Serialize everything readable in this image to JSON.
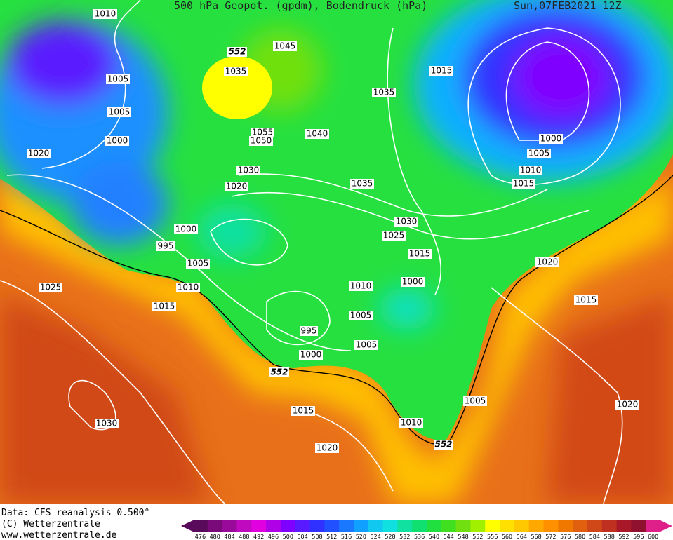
{
  "header": {
    "title": "500 hPa Geopot. (gpdm), Bodendruck (hPa)",
    "date": "Sun,07FEB2021 12Z"
  },
  "isobar_labels": [
    1010,
    1005,
    1005,
    1000,
    1020,
    1000,
    995,
    1005,
    1010,
    1025,
    1015,
    1035,
    1045,
    1055,
    1050,
    1040,
    1030,
    1020,
    1035,
    1035,
    1015,
    1000,
    1005,
    1010,
    1015,
    1030,
    1025,
    1015,
    1020,
    1010,
    1000,
    1005,
    1015,
    995,
    1005,
    1000,
    1015,
    1005,
    1010,
    1030,
    1020,
    1020
  ],
  "geopotential_labels": [
    552,
    552,
    552
  ],
  "credits": [
    "Data: CFS reanalysis 0.500°",
    "(C) Wetterzentrale",
    "www.wetterzentrale.de"
  ],
  "colorbar": {
    "ticks": [
      476,
      480,
      484,
      488,
      492,
      496,
      500,
      504,
      508,
      512,
      516,
      520,
      524,
      528,
      532,
      536,
      540,
      544,
      548,
      552,
      556,
      560,
      564,
      568,
      572,
      576,
      580,
      584,
      588,
      592,
      596,
      600
    ],
    "colors": [
      "#5a0a5a",
      "#7a0a7a",
      "#9a0a9a",
      "#c00ac0",
      "#e000e0",
      "#b000e8",
      "#8000ff",
      "#5a1aff",
      "#3030ff",
      "#2050ff",
      "#1a78ff",
      "#10a0ff",
      "#10c8f0",
      "#10e0e0",
      "#10e0a0",
      "#10e070",
      "#20e040",
      "#40e020",
      "#70e010",
      "#a0f000",
      "#ffff00",
      "#ffe000",
      "#ffc800",
      "#ffa800",
      "#ff9000",
      "#f07800",
      "#e06010",
      "#d04818",
      "#c03020",
      "#a81828",
      "#901030",
      "#e0208a"
    ]
  }
}
